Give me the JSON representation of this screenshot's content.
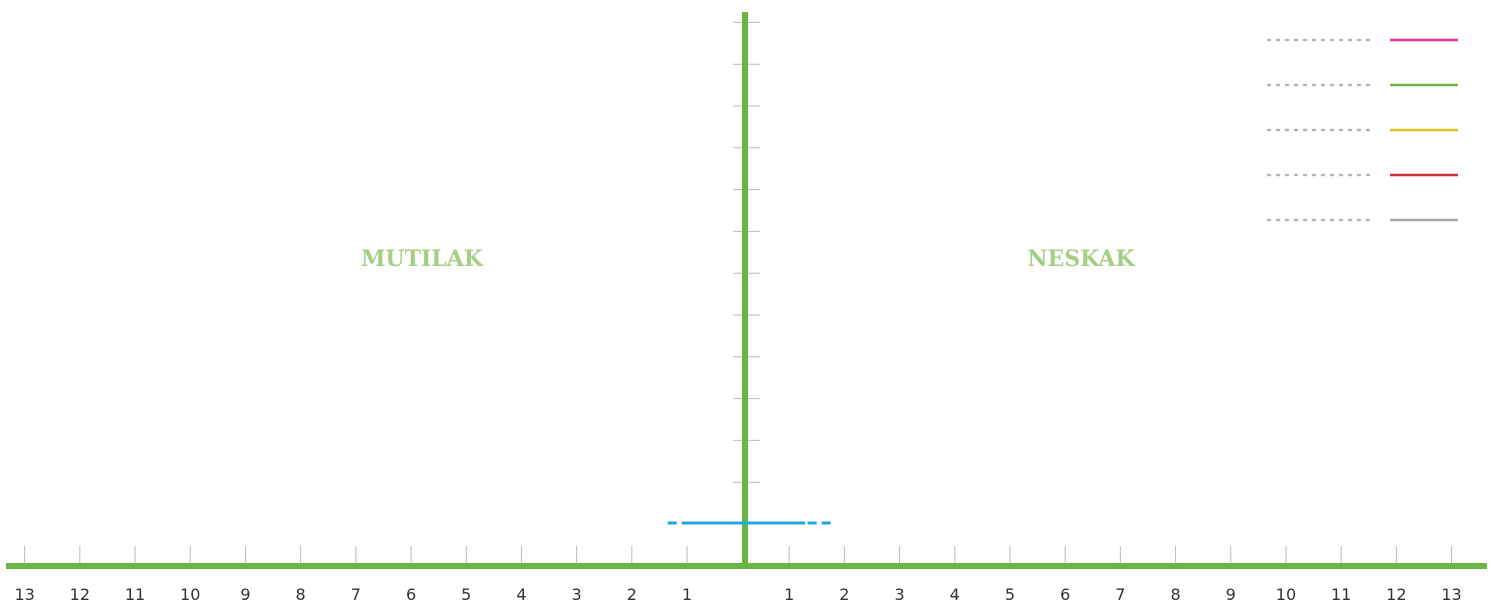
{
  "chart_data": {
    "type": "bar",
    "orientation": "horizontal-pyramid",
    "left_label": "MUTILAK",
    "right_label": "NESKAK",
    "x_left_ticks": [
      "13",
      "12",
      "11",
      "10",
      "9",
      "8",
      "7",
      "6",
      "5",
      "4",
      "3",
      "2",
      "1"
    ],
    "x_right_ticks": [
      "1",
      "2",
      "3",
      "4",
      "5",
      "6",
      "7",
      "8",
      "9",
      "10",
      "11",
      "12",
      "13"
    ],
    "xlim": [
      -13,
      13
    ],
    "y_tick_count": 13,
    "grid": false,
    "reference_line": {
      "left": -1.4,
      "right": 1.6,
      "style": "dashed",
      "color": "#1ea7e1"
    },
    "legend": {
      "placement": "top-right",
      "entries": [
        {
          "label": "",
          "color": "#e0389a"
        },
        {
          "label": "",
          "color": "#6ab545"
        },
        {
          "label": "",
          "color": "#e0c21c"
        },
        {
          "label": "",
          "color": "#c8313a"
        },
        {
          "label": "",
          "color": "#a9a9a9"
        }
      ]
    },
    "colors": {
      "axis": "#6ab545",
      "side_label": "#a6cf85",
      "tick": "#bbbbbb",
      "legend_dots": "#b5b5b5"
    }
  }
}
